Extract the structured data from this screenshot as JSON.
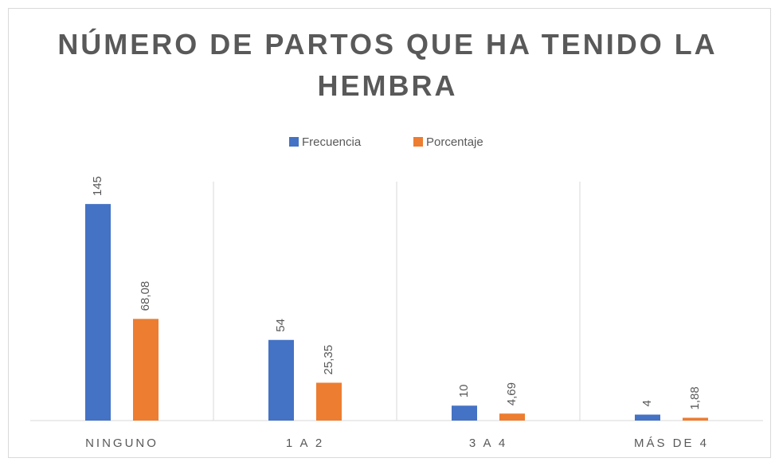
{
  "chart_data": {
    "type": "bar",
    "title": "NÚMERO DE PARTOS QUE HA TENIDO LA HEMBRA",
    "categories": [
      "NINGUNO",
      "1 A 2",
      "3 A 4",
      "MÁS DE 4"
    ],
    "series": [
      {
        "name": "Frecuencia",
        "color": "#4472c4",
        "values": [
          145,
          54,
          10,
          4
        ]
      },
      {
        "name": "Porcentaje",
        "color": "#ed7d31",
        "values": [
          68.08,
          25.35,
          4.69,
          1.88
        ],
        "value_labels": [
          "68,08",
          "25,35",
          "4,69",
          "1,88"
        ]
      }
    ],
    "ylim": [
      0,
      160
    ],
    "legend": "top"
  }
}
